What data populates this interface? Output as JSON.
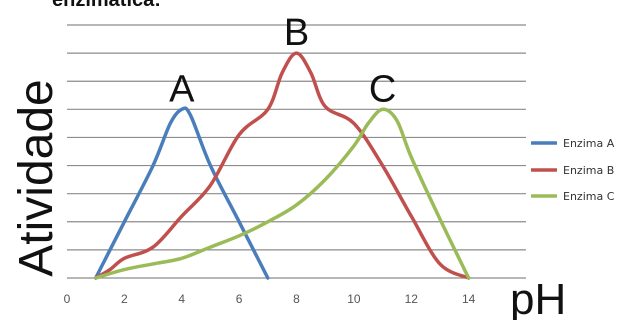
{
  "header_text": "enzimática:",
  "chart_data": {
    "type": "line",
    "title": "",
    "xlabel": "pH",
    "ylabel": "Atividade",
    "xlim": [
      0,
      16
    ],
    "ylim": [
      0,
      9
    ],
    "x_ticks": [
      0,
      2,
      4,
      6,
      8,
      10,
      12,
      14
    ],
    "grid": "horizontal",
    "legend_position": "right",
    "series": [
      {
        "name": "Enzima A",
        "color": "#4A7EBB",
        "peak_label": "A",
        "points": [
          [
            1,
            0
          ],
          [
            2,
            2
          ],
          [
            3,
            4
          ],
          [
            3.6,
            5.5
          ],
          [
            4,
            6
          ],
          [
            4.3,
            5.8
          ],
          [
            5,
            4
          ],
          [
            6,
            2
          ],
          [
            7,
            0
          ]
        ]
      },
      {
        "name": "Enzima B",
        "color": "#C0504D",
        "peak_label": "B",
        "points": [
          [
            1,
            0
          ],
          [
            1.5,
            0.3
          ],
          [
            2,
            0.7
          ],
          [
            3,
            1.1
          ],
          [
            4,
            2.2
          ],
          [
            5,
            3.3
          ],
          [
            6,
            5.1
          ],
          [
            7,
            6
          ],
          [
            7.5,
            7.3
          ],
          [
            8,
            8
          ],
          [
            8.5,
            7.3
          ],
          [
            9,
            6.1
          ],
          [
            10,
            5.5
          ],
          [
            11,
            4
          ],
          [
            12,
            2.2
          ],
          [
            13,
            0.5
          ],
          [
            14,
            0
          ]
        ]
      },
      {
        "name": "Enzima C",
        "color": "#9BBB59",
        "peak_label": "C",
        "points": [
          [
            1,
            0
          ],
          [
            2,
            0.3
          ],
          [
            3,
            0.5
          ],
          [
            4,
            0.7
          ],
          [
            5,
            1.1
          ],
          [
            6,
            1.5
          ],
          [
            7,
            2
          ],
          [
            8,
            2.6
          ],
          [
            9,
            3.5
          ],
          [
            10,
            4.7
          ],
          [
            10.5,
            5.5
          ],
          [
            11,
            6
          ],
          [
            11.5,
            5.6
          ],
          [
            12,
            4.3
          ],
          [
            13,
            2.1
          ],
          [
            14,
            0
          ]
        ]
      }
    ]
  }
}
